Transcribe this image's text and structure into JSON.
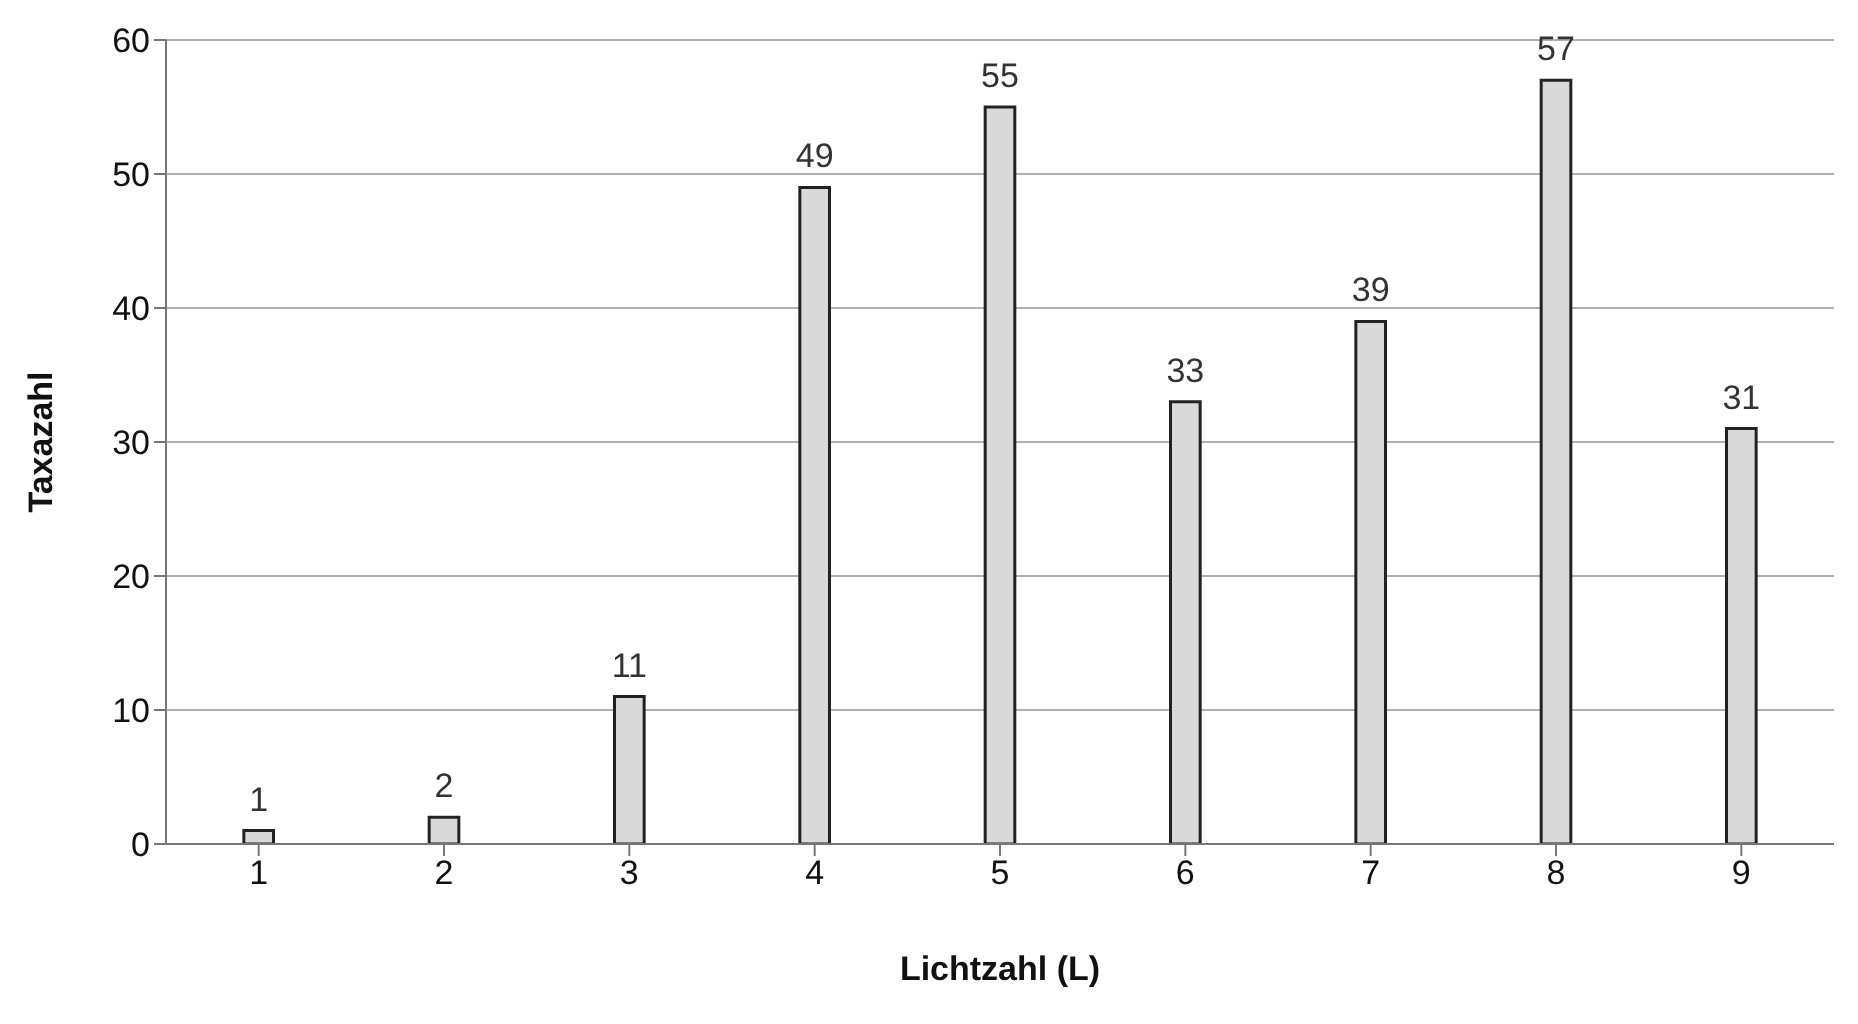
{
  "chart_data": {
    "type": "bar",
    "xlabel": "Lichtzahl (L)",
    "ylabel": "Taxazahl",
    "categories": [
      "1",
      "2",
      "3",
      "4",
      "5",
      "6",
      "7",
      "8",
      "9"
    ],
    "values": [
      1,
      2,
      11,
      49,
      55,
      33,
      39,
      57,
      31
    ],
    "color": "#d9d9d9",
    "ylim": [
      0,
      60
    ],
    "yticks": [
      0,
      10,
      20,
      30,
      40,
      50,
      60
    ],
    "grid": "y",
    "data_labels": true
  }
}
